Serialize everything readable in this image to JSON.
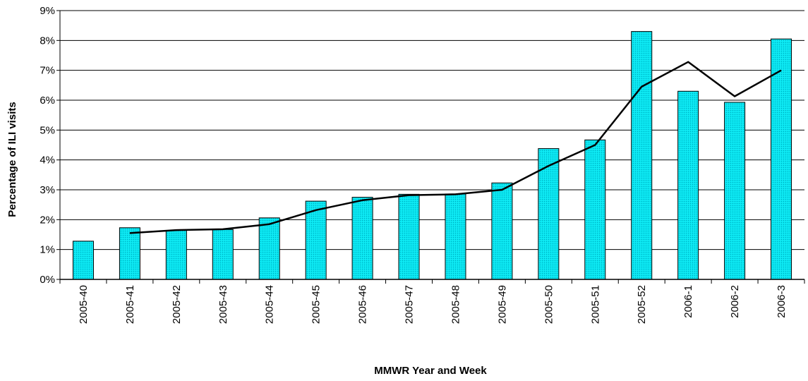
{
  "chart_data": {
    "type": "bar",
    "title": "",
    "xlabel": "MMWR Year and Week",
    "ylabel": "Percentage of ILI visits",
    "ylim": [
      0,
      9
    ],
    "y_tick_values": [
      0,
      1,
      2,
      3,
      4,
      5,
      6,
      7,
      8,
      9
    ],
    "y_tick_labels": [
      "0%",
      "1%",
      "2%",
      "3%",
      "4%",
      "5%",
      "6%",
      "7%",
      "8%",
      "9%"
    ],
    "grid": "horizontal",
    "legend": "none",
    "categories": [
      "2005-40",
      "2005-41",
      "2005-42",
      "2005-43",
      "2005-44",
      "2005-45",
      "2005-46",
      "2005-47",
      "2005-48",
      "2005-49",
      "2005-50",
      "2005-51",
      "2005-52",
      "2006-1",
      "2006-2",
      "2006-3"
    ],
    "series": [
      {
        "type": "bar",
        "color": "#00e5f0",
        "values": [
          1.28,
          1.73,
          1.64,
          1.67,
          2.06,
          2.62,
          2.75,
          2.85,
          2.86,
          3.23,
          4.38,
          4.67,
          8.3,
          6.3,
          5.93,
          8.05
        ]
      },
      {
        "type": "line",
        "color": "#000000",
        "values": [
          null,
          1.55,
          1.65,
          1.68,
          1.85,
          2.32,
          2.65,
          2.82,
          2.85,
          3.0,
          3.8,
          4.5,
          6.45,
          7.28,
          6.13,
          7.0
        ]
      }
    ]
  }
}
